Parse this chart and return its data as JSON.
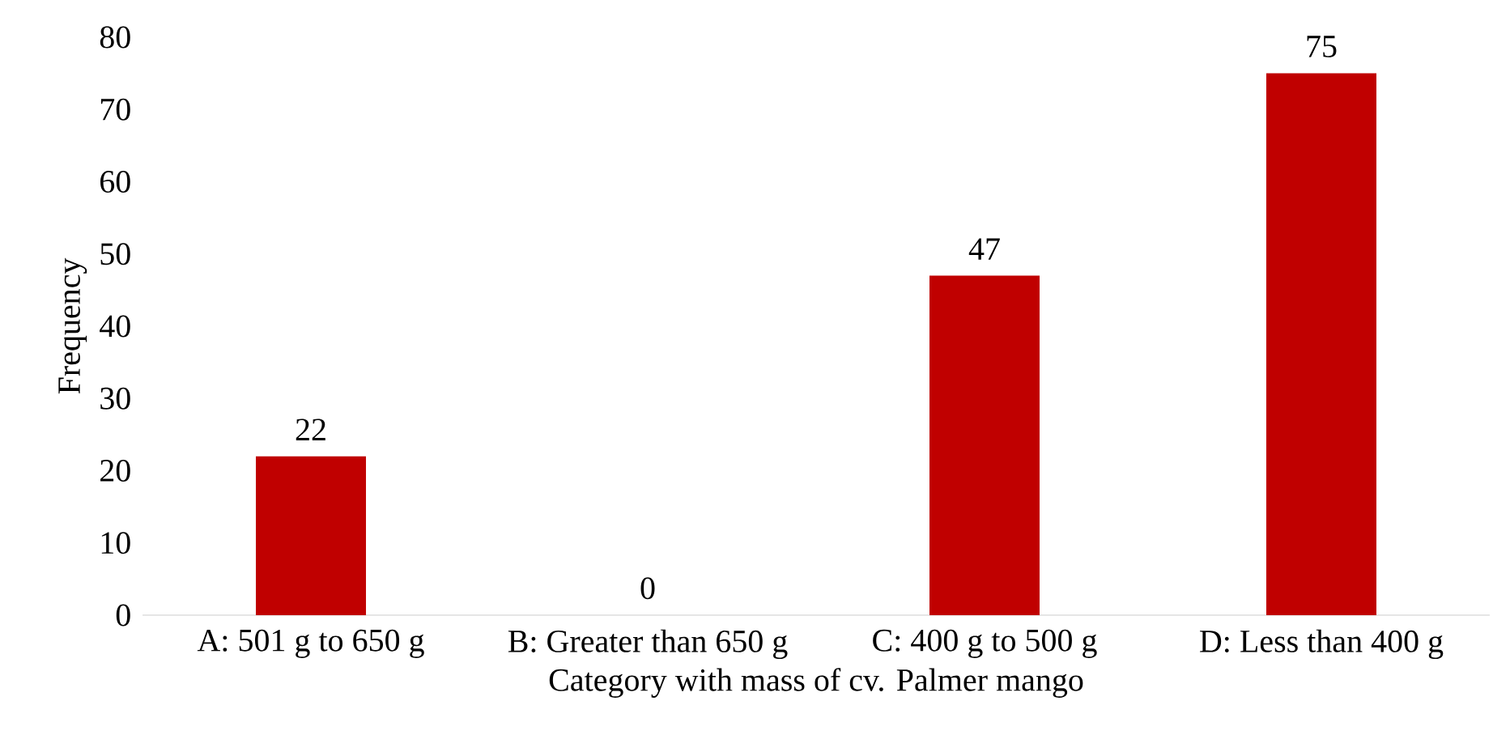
{
  "chart_data": {
    "type": "bar",
    "xlabel": "Category with mass of cv. Palmer mango",
    "ylabel": "Frequency",
    "categories": [
      "A: 501 g to 650 g",
      "B: Greater than 650 g",
      "C: 400 g to 500 g",
      "D: Less than 400 g"
    ],
    "values": [
      22,
      0,
      47,
      75
    ],
    "color": "#c00000",
    "ylim": [
      0,
      80
    ],
    "yticks": [
      0,
      10,
      20,
      30,
      40,
      50,
      60,
      70,
      80
    ],
    "data_labels": true,
    "grid": false
  }
}
